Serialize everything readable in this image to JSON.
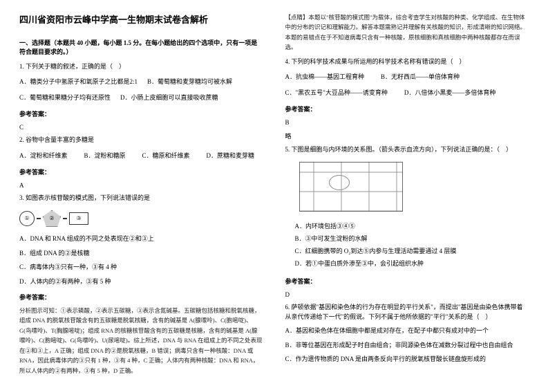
{
  "title": "四川省资阳市云峰中学高一生物期末试卷含解析",
  "section1": "一、选择题（本题共 40 小题，每小题 1.5 分。在每小题给出的四个选项中，只有一项是符合题目要求的。）",
  "q1": {
    "stem": "1. 下列关于糖的叙述，正确的是（　）",
    "a": "A．糖类分子中氢原子和氧原子之比都是2:1",
    "b": "B．葡萄糖和麦芽糖均可被水解",
    "c": "C．葡萄糖和果糖分子均有还原性",
    "d": "D．小肠上皮细胞可以直接吸收蔗糖"
  },
  "ansLabel": "参考答案：",
  "q1ans": "C",
  "q2": {
    "stem": "2. 谷物中含量丰富的多糖是",
    "a": "A．淀粉和纤维素",
    "b": "B．淀粉和糖原",
    "c": "C．糖原和纤维素",
    "d": "D．蔗糖和麦芽糖"
  },
  "q2ans": "A",
  "q3": {
    "stem": "3. 如图表示核苷酸的模式图，下列说法错误的是",
    "lab1": "①",
    "lab2": "②",
    "lab3": "③",
    "a": "A．DNA 和 RNA 组成的不同之处表现在②和③上",
    "b": "B．组成 DNA 的②是核糖",
    "c": "C．病毒体内③只有一种，③有 4 种",
    "d": "D．人体内的②有两种，③有 5 种"
  },
  "q3explain": "分析图示可知：①表示磷酸，②表示五碳糖，③表示含氮碱基。五碳糖包括核糖和脱氧核糖，组成 DNA 的脱氧核苷酸含有的五碳糖是脱氧核糖，含有的碱基是 A(腺嘌呤)、C(胞嘧啶)、G(鸟嘌呤)、T(胸腺嘧啶)；组成 RNA 的核糖核苷酸含有的五碳糖是核糖，含有的碱基是 A(腺嘌呤)、C(胞嘧啶)、G(鸟嘌呤)、U(尿嘧啶)。综上所述，DNA 与 RNA 在组成上的不同之处表现在②和③上，A 正确；组成 DNA 的②是脱氧核糖，B 错误；病毒只含有一种核酸：DNA 或 RNA，因此病毒体内的③只有 1 种，③有 4 种，C 正确；人体内有两种核酸：DNA 和 RNA，所以人体内的②有两种，③有 5 种，D 正确。",
  "q3top": "【点睛】本题以\"核苷酸的模式图\"为载体，综合考查学生对核酸的种类、化学组成、在生物体中的分布的识记和理解能力。解答本题需熟记并理解有关核酸的知识，形成清晰的知识网络。本题的易错点在于不知道病毒只含有一种核酸，原核细胞和真核细胞中两种核酸都存在而误选。",
  "q4": {
    "stem": "4. 下列的科学技术成果与所运用的科学技术名称有错误的是（　）",
    "a": "A．抗虫棉——基因工程育种",
    "b": "B．无籽西瓜——单倍体育种",
    "c": "C．\"黑农五号\"大豆品种——诱变育种",
    "d": "D．八倍体小黑麦——多倍体育种"
  },
  "q4ans": "B",
  "lue": "略",
  "q5": {
    "stem": "5. 下图是细胞与内环境的关系图。（箭头表示血流方向），下列说法正确的是：（　）",
    "a": "A．内环境包括③④⑤",
    "b": "B．③中可发生淀粉的水解",
    "c": "C．红细胞携带的 O₂到达⑤内参与生理活动需要通过 4 层膜",
    "d": "D．若①中蛋白质外渗至③中，会引起组织水肿"
  },
  "q5ans": "D",
  "q6": {
    "stem": "6. 萨顿依据\"基因和染色体的行为存在明显的平行关系\"，而提出\"基因是由染色体携带着从亲代传递给下一代\"的假说。下列不属于他所依据的\"平行\"关系的是（　）",
    "a": "A．基因和染色体在体细胞中都是成对存在，在配子中都只有成对中的一个",
    "b": "B．非等位基因在形成配子时自由组合；非同源染色体在减数分裂过程中也自由组合",
    "c": "C．作为遗传物质的 DNA 是由两条反向平行的脱氧核苷酸长链盘旋形成的"
  }
}
